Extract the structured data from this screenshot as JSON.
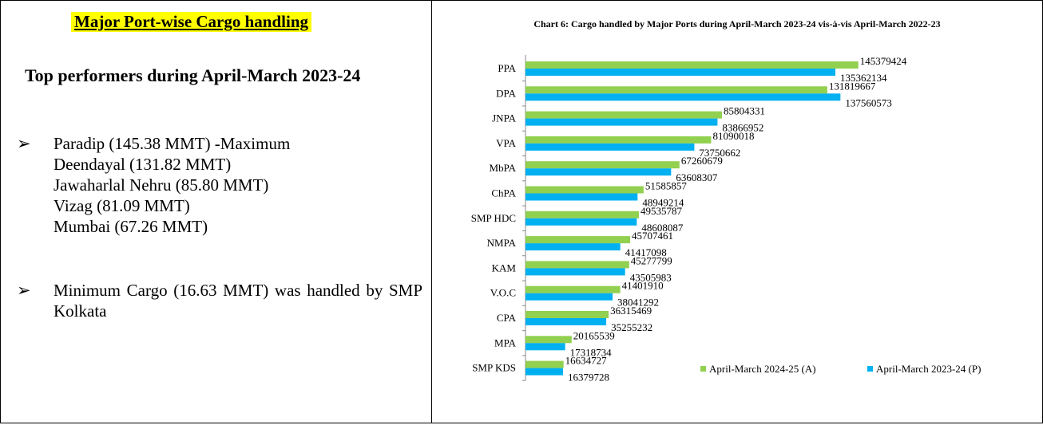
{
  "panel": {
    "heading": "Major Port-wise Cargo handling",
    "subheading": "Top performers during April-March 2023-24",
    "bullets": [
      {
        "lines": [
          "Paradip (145.38 MMT) -Maximum",
          "Deendayal (131.82 MMT)",
          "Jawaharlal Nehru (85.80 MMT)",
          "Vizag (81.09 MMT)",
          "Mumbai (67.26 MMT)"
        ]
      },
      {
        "lines": [
          "Minimum Cargo (16.63 MMT) was handled by SMP Kolkata"
        ]
      }
    ]
  },
  "chart_data": {
    "type": "hbar",
    "title": "Chart 6: Cargo handled by Major Ports during April-March 2023-24 vis-à-vis April-March 2022-23",
    "categories": [
      "PPA",
      "DPA",
      "JNPA",
      "VPA",
      "MbPA",
      "ChPA",
      "SMP HDC",
      "NMPA",
      "KAM",
      "V.O.C",
      "CPA",
      "MPA",
      "SMP KDS"
    ],
    "series": [
      {
        "name": "April-March 2024-25 (A)",
        "color": "#92d050",
        "values": [
          145379424,
          131819667,
          85804331,
          81090018,
          67260679,
          51585857,
          49535787,
          45707461,
          45277799,
          41401910,
          36315469,
          20165539,
          16634727
        ]
      },
      {
        "name": "April-March 2023-24 (P)",
        "color": "#00b0f0",
        "values": [
          135362134,
          137560573,
          83866952,
          73750662,
          63608307,
          48949214,
          48608087,
          41417098,
          43505983,
          38041292,
          35255232,
          17318734,
          16379728
        ]
      }
    ],
    "xlim": [
      0,
      150000000
    ],
    "legend": "bottom-right"
  }
}
